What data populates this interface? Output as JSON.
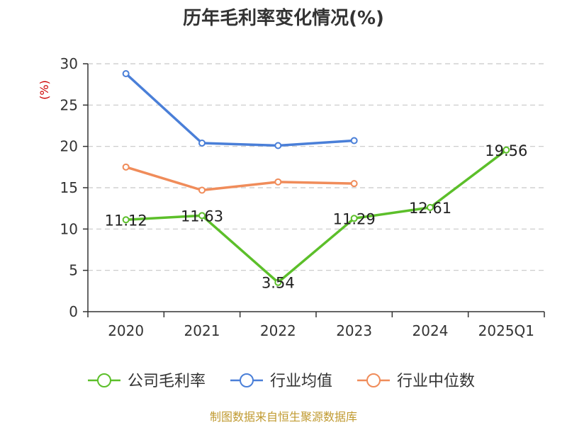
{
  "chart_data": {
    "type": "line",
    "title": "历年毛利率变化情况(%)",
    "ylabel": "(%)",
    "categories": [
      "2020",
      "2021",
      "2022",
      "2023",
      "2024",
      "2025Q1"
    ],
    "ylim": [
      0,
      30
    ],
    "yticks": [
      "0",
      "5",
      "10",
      "15",
      "20",
      "25",
      "30"
    ],
    "grid": true,
    "legend_position": "bottom",
    "series": [
      {
        "name": "公司毛利率",
        "color": "#5cbf2a",
        "values": [
          11.12,
          11.63,
          3.54,
          11.29,
          12.61,
          19.56
        ],
        "labels": [
          "11.12",
          "11.63",
          "3.54",
          "11.29",
          "12.61",
          "19.56"
        ]
      },
      {
        "name": "行业均值",
        "color": "#4a7fd8",
        "values": [
          28.8,
          20.4,
          20.1,
          20.7,
          null,
          null
        ]
      },
      {
        "name": "行业中位数",
        "color": "#f08c5a",
        "values": [
          17.5,
          14.7,
          15.7,
          15.5,
          null,
          null
        ]
      }
    ]
  },
  "source": "制图数据来自恒生聚源数据库"
}
